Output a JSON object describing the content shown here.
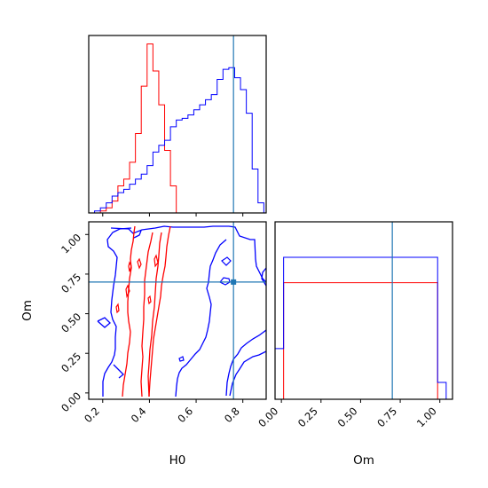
{
  "chart_data": {
    "type": "corner",
    "parameters": [
      "H0",
      "Om"
    ],
    "truth": {
      "H0": 0.76,
      "Om": 0.7
    },
    "truth_color": "#1f77b4",
    "series": [
      {
        "color": "#ff0000"
      },
      {
        "color": "#0000ff"
      }
    ],
    "panels": [
      {
        "id": "H0-hist",
        "type": "histogram",
        "xlim": [
          0.14,
          0.9
        ],
        "ylim": [
          0,
          1.05
        ],
        "x_ticks": [
          0.2,
          0.4,
          0.6,
          0.8
        ],
        "bin_edges": [
          0.14,
          0.165,
          0.19,
          0.215,
          0.24,
          0.265,
          0.29,
          0.315,
          0.34,
          0.365,
          0.39,
          0.415,
          0.44,
          0.465,
          0.49,
          0.515,
          0.54,
          0.565,
          0.59,
          0.615,
          0.64,
          0.665,
          0.69,
          0.715,
          0.74,
          0.765,
          0.79,
          0.815,
          0.84,
          0.865,
          0.89
        ],
        "series_values": [
          [
            0,
            0,
            0.012,
            0.03,
            0.07,
            0.16,
            0.2,
            0.3,
            0.47,
            0.75,
            1.0,
            0.84,
            0.64,
            0.37,
            0.16,
            0,
            0,
            0,
            0,
            0,
            0,
            0,
            0,
            0,
            0,
            0,
            0,
            0,
            0,
            0
          ],
          [
            0,
            0.012,
            0.03,
            0.06,
            0.1,
            0.12,
            0.14,
            0.17,
            0.2,
            0.23,
            0.28,
            0.36,
            0.4,
            0.43,
            0.51,
            0.55,
            0.56,
            0.58,
            0.61,
            0.64,
            0.67,
            0.7,
            0.79,
            0.85,
            0.86,
            0.8,
            0.73,
            0.59,
            0.26,
            0.06
          ]
        ]
      },
      {
        "id": "Om-hist",
        "type": "histogram",
        "xlim": [
          -0.04,
          1.08
        ],
        "ylim": [
          0,
          1.05
        ],
        "x_ticks": [
          "0.00",
          "0.25",
          "0.50",
          "0.75",
          "1.00"
        ],
        "bin_edges": [
          -0.04,
          0.014,
          0.068,
          0.122,
          0.176,
          0.23,
          0.284,
          0.338,
          0.392,
          0.446,
          0.5,
          0.554,
          0.608,
          0.662,
          0.716,
          0.77,
          0.824,
          0.878,
          0.932,
          0.986,
          1.04
        ],
        "series_values": [
          [
            0,
            0.69,
            0.69,
            0.69,
            0.69,
            0.69,
            0.69,
            0.69,
            0.69,
            0.69,
            0.69,
            0.69,
            0.69,
            0.69,
            0.69,
            0.69,
            0.69,
            0.69,
            0.69,
            0
          ],
          [
            0.3,
            0.84,
            0.84,
            0.84,
            0.84,
            0.84,
            0.84,
            0.84,
            0.84,
            0.84,
            0.84,
            0.84,
            0.84,
            0.84,
            0.84,
            0.84,
            0.84,
            0.84,
            0.84,
            0.1
          ]
        ]
      },
      {
        "id": "H0-Om-2d",
        "type": "contour",
        "xlabel": "H0",
        "ylabel": "Om",
        "xlim": [
          0.14,
          0.9
        ],
        "ylim": [
          -0.04,
          1.08
        ],
        "x_ticks": [
          0.2,
          0.4,
          0.6,
          0.8
        ],
        "y_ticks": [
          "0.00",
          "0.25",
          "0.50",
          "0.75",
          "1.00"
        ]
      }
    ]
  }
}
